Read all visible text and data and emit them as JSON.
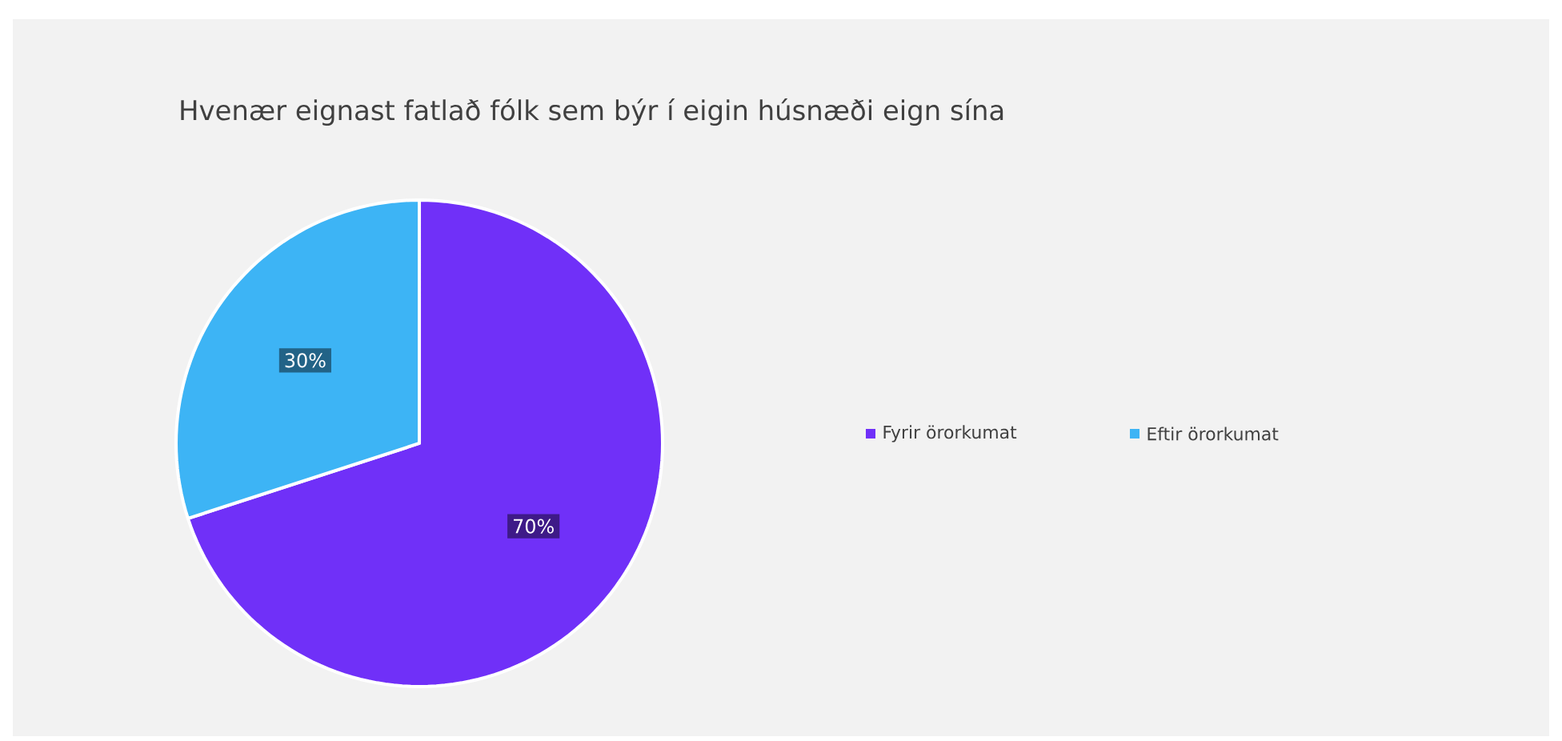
{
  "chart_data": {
    "type": "pie",
    "title": "Hvenær eignast fatlað fólk sem býr í eigin húsnæði eign sína",
    "categories": [
      "Fyrir örorkumat",
      "Eftir örorkumat"
    ],
    "values": [
      70,
      30
    ],
    "colors": [
      "#7030f8",
      "#3db4f5"
    ],
    "value_labels": [
      "70%",
      "30%"
    ],
    "legend": "right"
  }
}
